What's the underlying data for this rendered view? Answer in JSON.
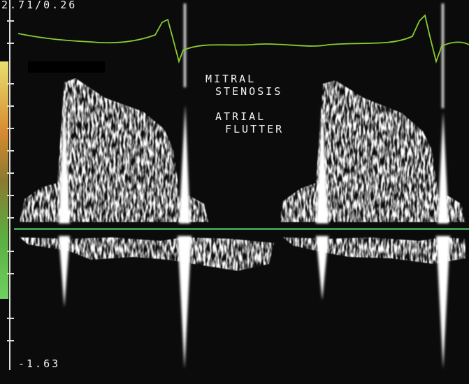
{
  "header": {
    "scale_top": "2.71/0.26",
    "scale_bottom": "-1.63"
  },
  "annotations": {
    "diagnosis_line1": "MITRAL",
    "diagnosis_line2": "STENOSIS",
    "rhythm_line1": "ATRIAL",
    "rhythm_line2": "FLUTTER"
  }
}
